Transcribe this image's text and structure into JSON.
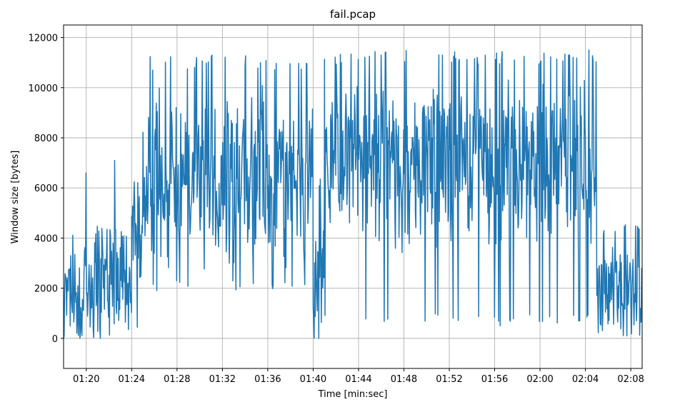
{
  "chart_data": {
    "type": "line",
    "title": "fail.pcap",
    "xlabel": "Time [min:sec]",
    "ylabel": "Window size [bytes]",
    "x_unit": "min:sec",
    "xlim": [
      "01:18",
      "02:09"
    ],
    "ylim": [
      -1200,
      12500
    ],
    "x_ticks": [
      "01:20",
      "01:24",
      "01:28",
      "01:32",
      "01:36",
      "01:40",
      "01:44",
      "01:48",
      "01:52",
      "01:56",
      "02:00",
      "02:04",
      "02:08"
    ],
    "y_ticks": [
      0,
      2000,
      4000,
      6000,
      8000,
      10000,
      12000
    ],
    "grid": true,
    "line_color": "#1f77b4",
    "segments": [
      {
        "start": "01:18",
        "end": "01:24",
        "min": 0,
        "max": 4500,
        "center": 1900,
        "spread": 1800
      },
      {
        "start": "01:24",
        "end": "01:25",
        "min": 400,
        "max": 7000,
        "center": 4800,
        "spread": 2400
      },
      {
        "start": "01:25",
        "end": "01:40",
        "min": 1900,
        "max": 11300,
        "center": 6300,
        "spread": 3100
      },
      {
        "start": "01:40",
        "end": "01:41",
        "min": 0,
        "max": 6500,
        "center": 3000,
        "spread": 2600
      },
      {
        "start": "01:41",
        "end": "02:05",
        "min": 600,
        "max": 11500,
        "center": 7000,
        "spread": 2900
      },
      {
        "start": "02:05",
        "end": "02:09",
        "min": 0,
        "max": 4600,
        "center": 2000,
        "spread": 1700
      }
    ],
    "spikes": [
      {
        "t": "01:20",
        "value": 6600
      },
      {
        "t": "01:22.5",
        "value": 7100
      },
      {
        "t": "01:40.1",
        "value": 0
      },
      {
        "t": "01:40.5",
        "value": 0
      },
      {
        "t": "01:56.5",
        "value": 500
      },
      {
        "t": "02:03.5",
        "value": 700
      },
      {
        "t": "02:04.3",
        "value": 11500
      }
    ]
  }
}
